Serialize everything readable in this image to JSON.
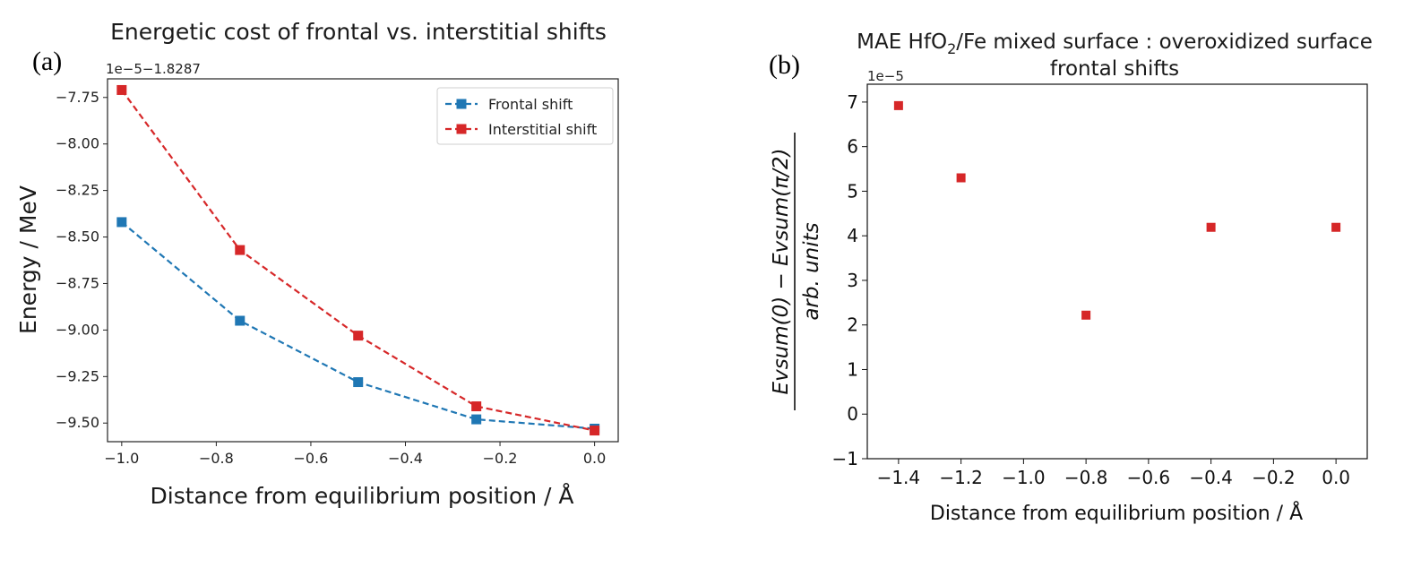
{
  "chart_data": [
    {
      "panel": "(a)",
      "type": "line",
      "title": "Energetic cost of frontal vs. interstitial shifts",
      "xlabel": "Distance from equilibrium position / Å",
      "ylabel": "Energy / MeV",
      "y_offset_label": "1e−5−1.8287",
      "xlim": [
        -1.03,
        0.05
      ],
      "ylim": [
        -9.6,
        -7.65
      ],
      "xticks": [
        -1.0,
        -0.8,
        -0.6,
        -0.4,
        -0.2,
        0.0
      ],
      "xtick_labels": [
        "−1.0",
        "−0.8",
        "−0.6",
        "−0.4",
        "−0.2",
        "0.0"
      ],
      "yticks": [
        -7.75,
        -8.0,
        -8.25,
        -8.5,
        -8.75,
        -9.0,
        -9.25,
        -9.5
      ],
      "ytick_labels": [
        "−7.75",
        "−8.00",
        "−8.25",
        "−8.50",
        "−8.75",
        "−9.00",
        "−9.25",
        "−9.50"
      ],
      "legend_position": "top-right",
      "x": [
        -1.0,
        -0.75,
        -0.5,
        -0.25,
        0.0
      ],
      "series": [
        {
          "name": "Frontal shift",
          "color": "#1f77b4",
          "values": [
            -8.42,
            -8.95,
            -9.28,
            -9.48,
            -9.53
          ]
        },
        {
          "name": "Interstitial shift",
          "color": "#d62728",
          "values": [
            -7.71,
            -8.57,
            -9.03,
            -9.41,
            -9.54
          ]
        }
      ]
    },
    {
      "panel": "(b)",
      "type": "scatter",
      "title_prefix": "MAE HfO",
      "title_sub": "2",
      "title_suffix": "/Fe mixed surface : overoxidized surface",
      "title_line2": "frontal shifts",
      "xlabel": "Distance from equilibrium position / Å",
      "ylabel_num": "Evsum(0) − Evsum(π/2)",
      "ylabel_den": "arb. units",
      "y_scale_label": "1e−5",
      "xlim": [
        -1.5,
        0.1
      ],
      "ylim": [
        -1,
        7.4
      ],
      "xticks": [
        -1.4,
        -1.2,
        -1.0,
        -0.8,
        -0.6,
        -0.4,
        -0.2,
        0.0
      ],
      "xtick_labels": [
        "−1.4",
        "−1.2",
        "−1.0",
        "−0.8",
        "−0.6",
        "−0.4",
        "−0.2",
        "0.0"
      ],
      "yticks": [
        -1,
        0,
        1,
        2,
        3,
        4,
        5,
        6,
        7
      ],
      "ytick_labels": [
        "−1",
        "0",
        "1",
        "2",
        "3",
        "4",
        "5",
        "6",
        "7"
      ],
      "color": "#d62728",
      "x": [
        -1.4,
        -1.2,
        -0.8,
        -0.4,
        0.0
      ],
      "values": [
        6.92,
        5.3,
        2.22,
        4.19,
        4.19
      ]
    }
  ]
}
